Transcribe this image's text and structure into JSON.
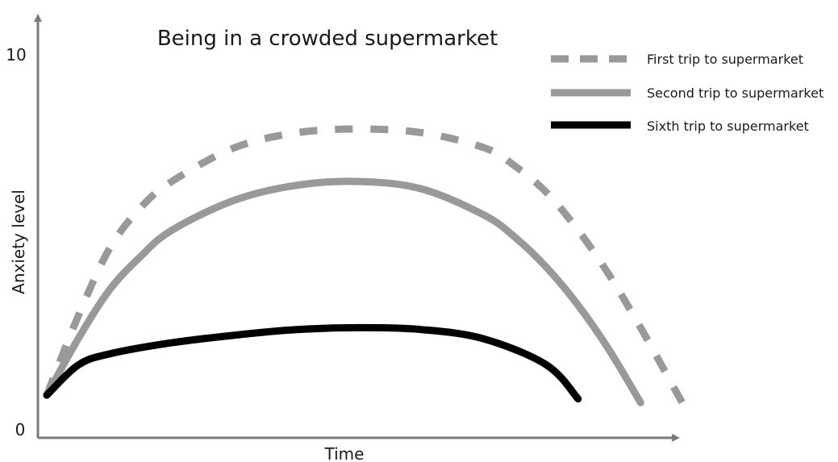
{
  "chart_data": {
    "type": "line",
    "title": "Being in a crowded supermarket",
    "xlabel": "Time",
    "ylabel": "Anxiety level",
    "ylim": [
      0,
      10
    ],
    "yticks": [
      "0",
      "10"
    ],
    "grid": false,
    "legend_position": "top-right",
    "series": [
      {
        "name": "First trip to supermarket",
        "style": "dashed",
        "color": "#999999",
        "x": [
          0,
          0.5,
          1,
          1.5,
          2,
          3,
          4,
          5,
          6,
          7,
          7.5,
          8,
          8.5,
          9,
          9.5,
          10,
          10.3
        ],
        "y": [
          0.9,
          3.0,
          4.8,
          5.9,
          6.6,
          7.5,
          7.9,
          8.0,
          7.9,
          7.5,
          7.0,
          6.3,
          5.3,
          4.1,
          2.7,
          1.2,
          0.3
        ]
      },
      {
        "name": "Second trip to supermarket",
        "style": "solid",
        "color": "#999999",
        "x": [
          0,
          0.5,
          1,
          1.5,
          2,
          3,
          4,
          5,
          6,
          7,
          7.5,
          8,
          8.5,
          9,
          9.5
        ],
        "y": [
          0.9,
          2.4,
          3.7,
          4.6,
          5.3,
          6.1,
          6.5,
          6.6,
          6.4,
          5.7,
          5.1,
          4.3,
          3.3,
          2.1,
          0.7
        ]
      },
      {
        "name": "Sixth trip to supermarket",
        "style": "solid",
        "color": "#000000",
        "x": [
          0,
          0.5,
          1,
          2,
          3,
          4,
          5,
          6,
          7,
          8,
          8.5
        ],
        "y": [
          0.9,
          1.7,
          2.0,
          2.3,
          2.5,
          2.65,
          2.7,
          2.65,
          2.4,
          1.7,
          0.8
        ]
      }
    ]
  }
}
